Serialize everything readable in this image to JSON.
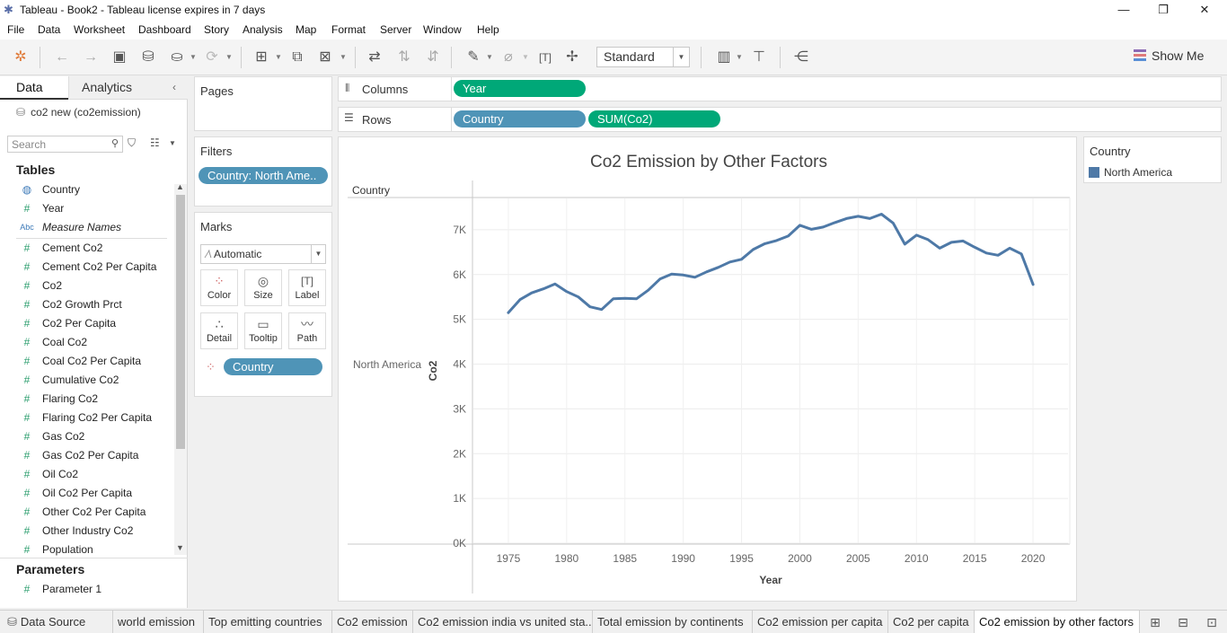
{
  "window": {
    "title": "Tableau - Book2 - Tableau license expires in 7 days"
  },
  "menu": [
    "File",
    "Data",
    "Worksheet",
    "Dashboard",
    "Story",
    "Analysis",
    "Map",
    "Format",
    "Server",
    "Window",
    "Help"
  ],
  "toolbar": {
    "fit_value": "Standard",
    "show_me_label": "Show Me"
  },
  "data_pane": {
    "tab_data": "Data",
    "tab_analytics": "Analytics",
    "datasource": "co2 new (co2emission)",
    "search_placeholder": "Search",
    "tables_header": "Tables",
    "fields": [
      {
        "label": "Country",
        "icon": "globe-icon"
      },
      {
        "label": "Year",
        "icon": "hash"
      },
      {
        "label": "Measure Names",
        "icon": "abc"
      },
      {
        "label": "Cement Co2",
        "icon": "hash"
      },
      {
        "label": "Cement Co2 Per Capita",
        "icon": "hash"
      },
      {
        "label": "Co2",
        "icon": "hash"
      },
      {
        "label": "Co2 Growth Prct",
        "icon": "hash"
      },
      {
        "label": "Co2 Per Capita",
        "icon": "hash"
      },
      {
        "label": "Coal Co2",
        "icon": "hash"
      },
      {
        "label": "Coal Co2 Per Capita",
        "icon": "hash"
      },
      {
        "label": "Cumulative Co2",
        "icon": "hash"
      },
      {
        "label": "Flaring Co2",
        "icon": "hash"
      },
      {
        "label": "Flaring Co2 Per Capita",
        "icon": "hash"
      },
      {
        "label": "Gas Co2",
        "icon": "hash"
      },
      {
        "label": "Gas Co2 Per Capita",
        "icon": "hash"
      },
      {
        "label": "Oil Co2",
        "icon": "hash"
      },
      {
        "label": "Oil Co2 Per Capita",
        "icon": "hash"
      },
      {
        "label": "Other Co2 Per Capita",
        "icon": "hash"
      },
      {
        "label": "Other Industry Co2",
        "icon": "hash"
      },
      {
        "label": "Population",
        "icon": "hash"
      }
    ],
    "parameters_header": "Parameters",
    "parameters": [
      {
        "label": "Parameter 1"
      }
    ]
  },
  "shelves": {
    "pages_label": "Pages",
    "filters_label": "Filters",
    "filter_pill": "Country: North Ame..",
    "marks_label": "Marks",
    "mark_type": "Automatic",
    "mark_buttons": [
      "Color",
      "Size",
      "Label",
      "Detail",
      "Tooltip",
      "Path"
    ],
    "marks_pill": "Country",
    "columns_label": "Columns",
    "rows_label": "Rows",
    "columns_pills": [
      "Year"
    ],
    "rows_pills": [
      "Country",
      "SUM(Co2)"
    ]
  },
  "legend": {
    "title": "Country",
    "items": [
      {
        "label": "North America",
        "color": "#4e79a7"
      }
    ]
  },
  "chart_data": {
    "type": "line",
    "title": "Co2 Emission by Other Factors",
    "xlabel": "Year",
    "ylabel": "Co2",
    "row_header": "Country",
    "row_label": "North America",
    "color": "#4e79a7",
    "xlim": [
      1972,
      2023
    ],
    "ylim": [
      0,
      7700
    ],
    "x_ticks": [
      1975,
      1980,
      1985,
      1990,
      1995,
      2000,
      2005,
      2010,
      2015,
      2020
    ],
    "y_ticks": [
      0,
      1000,
      2000,
      3000,
      4000,
      5000,
      6000,
      7000
    ],
    "y_tick_labels": [
      "0K",
      "1K",
      "2K",
      "3K",
      "4K",
      "5K",
      "6K",
      "7K"
    ],
    "grid": true,
    "series": [
      {
        "name": "North America",
        "x": [
          1975,
          1976,
          1977,
          1978,
          1979,
          1980,
          1981,
          1982,
          1983,
          1984,
          1985,
          1986,
          1987,
          1988,
          1989,
          1990,
          1991,
          1992,
          1993,
          1994,
          1995,
          1996,
          1997,
          1998,
          1999,
          2000,
          2001,
          2002,
          2003,
          2004,
          2005,
          2006,
          2007,
          2008,
          2009,
          2010,
          2011,
          2012,
          2013,
          2014,
          2015,
          2016,
          2017,
          2018,
          2019,
          2020
        ],
        "values": [
          5150,
          5440,
          5590,
          5680,
          5790,
          5620,
          5500,
          5280,
          5220,
          5460,
          5470,
          5460,
          5650,
          5900,
          6010,
          5990,
          5940,
          6060,
          6160,
          6280,
          6340,
          6560,
          6690,
          6760,
          6860,
          7100,
          7010,
          7060,
          7160,
          7250,
          7300,
          7250,
          7350,
          7150,
          6680,
          6880,
          6780,
          6590,
          6720,
          6750,
          6610,
          6480,
          6430,
          6590,
          6460,
          5780
        ]
      }
    ]
  },
  "tabs": {
    "data_source": "Data Source",
    "sheets": [
      "world emission",
      "Top emitting countries",
      "Co2 emission",
      "Co2 emission india vs united sta...",
      "Total emission by continents",
      "Co2 emission per capita",
      "Co2 per capita",
      "Co2 emission by other factors"
    ],
    "active": "Co2 emission by other factors"
  }
}
